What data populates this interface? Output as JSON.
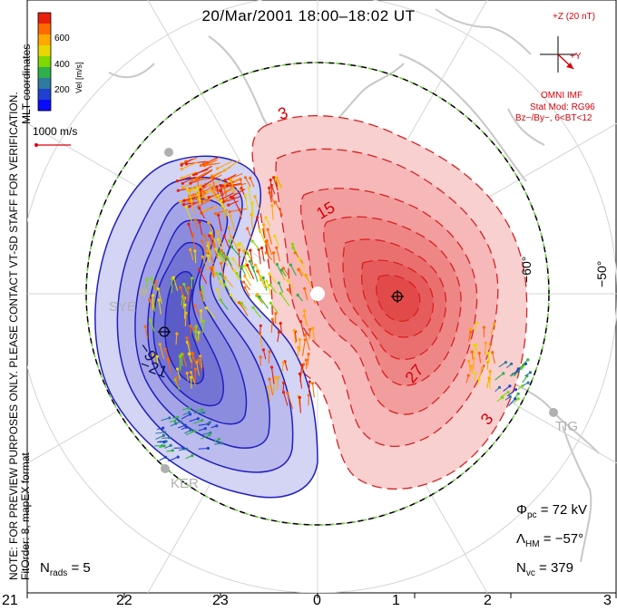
{
  "title": "20/Mar/2001 18:00–18:02 UT",
  "colorbar": {
    "label": "Vel [m/s]",
    "ticks": [
      "600",
      "400",
      "200"
    ],
    "colors": [
      "#e8200a",
      "#ff6a00",
      "#ffa800",
      "#e8d800",
      "#7fd800",
      "#2fb04a",
      "#2f7aa0",
      "#1f40d0",
      "#0a0aff"
    ]
  },
  "reference_vector": "1000 m/s",
  "coord_label": "MLT coordinates",
  "preview_note": "NOTE: FOR PREVIEW PURPOSES ONLY. PLEASE CONTACT VT-SD STAFF FOR VERIFICATION.",
  "fit_info": "FitOrder: 8,  mapEX format",
  "imf": {
    "z_label": "+Z (20 nT)",
    "y_label": "+Y",
    "source": "OMNI IMF",
    "model": "Stat Mod: RG96",
    "condition": "Bz−/By−, 6<BT<12"
  },
  "latitude_labels": [
    "−60°",
    "−50°"
  ],
  "contour_labels": [
    "3",
    "15",
    "27",
    "3",
    "−9",
    "−21"
  ],
  "stations": [
    "SYE",
    "TIG",
    "KER"
  ],
  "stats": {
    "phi_pc": "Φ",
    "phi_pc_sub": "pc",
    "phi_pc_value": "= 72 kV",
    "lambda_hm": "Λ",
    "lambda_hm_sub": "HM",
    "lambda_hm_value": "= −57°",
    "n_vc": "N",
    "n_vc_sub": "vc",
    "n_vc_value": "= 379",
    "n_rads": "N",
    "n_rads_sub": "rads",
    "n_rads_value": "= 5"
  },
  "mlt_ticks": [
    "21",
    "22",
    "23",
    "0",
    "1",
    "2",
    "3"
  ],
  "colors": {
    "negative": "#2020c0",
    "positive": "#d82020",
    "boundary": "#6fd040"
  }
}
